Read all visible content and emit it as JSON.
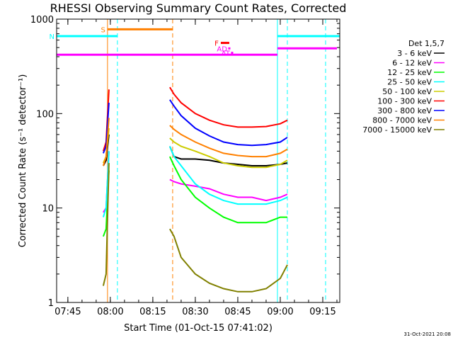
{
  "chart_data": {
    "type": "line",
    "title": "RHESSI Observing Summary Count Rates, Corrected",
    "xlabel": "Start Time (01-Oct-15 07:41:02)",
    "ylabel": "Corrected Count Rate (s⁻¹ detector⁻¹)",
    "yscale": "log",
    "ylim": [
      1,
      1000
    ],
    "xlim": [
      "07:41:02",
      "09:21:00"
    ],
    "x_ticks": [
      "07:45",
      "08:00",
      "08:15",
      "08:30",
      "08:45",
      "09:00",
      "09:15"
    ],
    "y_ticks": [
      "1",
      "10",
      "100",
      "1000"
    ],
    "legend_title": "Det 1,5,7",
    "legend_position": "right",
    "timestamp": "31-Oct-2021 20:08",
    "series": [
      {
        "name": "3 - 6 keV",
        "color": "#000000",
        "segments": [
          {
            "x": [
              "07:57:30",
              "07:58:30",
              "07:59:30"
            ],
            "y": [
              28,
              32,
              60
            ]
          },
          {
            "x": [
              "08:21:00",
              "08:22:30",
              "08:25:00",
              "08:30:00",
              "08:35:00",
              "08:40:00",
              "08:45:00",
              "08:50:00",
              "08:55:00",
              "09:00:00",
              "09:02:30"
            ],
            "y": [
              45,
              35,
              33,
              33,
              32,
              30,
              29,
              28,
              28,
              29,
              30
            ]
          }
        ]
      },
      {
        "name": "6 - 12 keV",
        "color": "#ff00ff",
        "segments": [
          {
            "x": [
              "07:57:30",
              "07:58:30",
              "07:59:30"
            ],
            "y": [
              9,
              10,
              40
            ]
          },
          {
            "x": [
              "08:21:00",
              "08:22:30",
              "08:25:00",
              "08:30:00",
              "08:35:00",
              "08:40:00",
              "08:45:00",
              "08:50:00",
              "08:55:00",
              "09:00:00",
              "09:02:30"
            ],
            "y": [
              20,
              19,
              18,
              17,
              16,
              14,
              13,
              13,
              12,
              13,
              14
            ]
          }
        ]
      },
      {
        "name": "12 - 25 keV",
        "color": "#00ff00",
        "segments": [
          {
            "x": [
              "07:57:30",
              "07:58:30",
              "07:59:30"
            ],
            "y": [
              5,
              6,
              25
            ]
          },
          {
            "x": [
              "08:21:00",
              "08:22:30",
              "08:25:00",
              "08:30:00",
              "08:35:00",
              "08:40:00",
              "08:45:00",
              "08:50:00",
              "08:55:00",
              "09:00:00",
              "09:02:30"
            ],
            "y": [
              35,
              28,
              20,
              13,
              10,
              8,
              7,
              7,
              7,
              8,
              8
            ]
          }
        ]
      },
      {
        "name": "25 - 50 keV",
        "color": "#00ffff",
        "segments": [
          {
            "x": [
              "07:57:30",
              "07:58:30",
              "07:59:30"
            ],
            "y": [
              8,
              10,
              40
            ]
          },
          {
            "x": [
              "08:21:00",
              "08:22:30",
              "08:25:00",
              "08:30:00",
              "08:35:00",
              "08:40:00",
              "08:45:00",
              "08:50:00",
              "08:55:00",
              "09:00:00",
              "09:02:30"
            ],
            "y": [
              45,
              35,
              28,
              18,
              14,
              12,
              11,
              11,
              11,
              12,
              13
            ]
          }
        ]
      },
      {
        "name": "50 - 100 keV",
        "color": "#cccc00",
        "segments": [
          {
            "x": [
              "07:57:30",
              "07:58:30",
              "07:59:30"
            ],
            "y": [
              30,
              35,
              70
            ]
          },
          {
            "x": [
              "08:21:00",
              "08:22:30",
              "08:25:00",
              "08:30:00",
              "08:35:00",
              "08:40:00",
              "08:45:00",
              "08:50:00",
              "08:55:00",
              "09:00:00",
              "09:02:30"
            ],
            "y": [
              55,
              50,
              45,
              40,
              35,
              30,
              28,
              27,
              27,
              29,
              32
            ]
          }
        ]
      },
      {
        "name": "100 - 300 keV",
        "color": "#ff0000",
        "segments": [
          {
            "x": [
              "07:57:30",
              "07:58:30",
              "07:59:30"
            ],
            "y": [
              40,
              50,
              180
            ]
          },
          {
            "x": [
              "08:21:00",
              "08:22:30",
              "08:25:00",
              "08:30:00",
              "08:35:00",
              "08:40:00",
              "08:45:00",
              "08:50:00",
              "08:55:00",
              "09:00:00",
              "09:02:30"
            ],
            "y": [
              190,
              160,
              130,
              100,
              85,
              76,
              72,
              72,
              73,
              78,
              85
            ]
          }
        ]
      },
      {
        "name": "300 - 800 keV",
        "color": "#0000ff",
        "segments": [
          {
            "x": [
              "07:57:30",
              "07:58:30",
              "07:59:30"
            ],
            "y": [
              38,
              45,
              130
            ]
          },
          {
            "x": [
              "08:21:00",
              "08:22:30",
              "08:25:00",
              "08:30:00",
              "08:35:00",
              "08:40:00",
              "08:45:00",
              "08:50:00",
              "08:55:00",
              "09:00:00",
              "09:02:30"
            ],
            "y": [
              140,
              120,
              95,
              70,
              58,
              50,
              47,
              46,
              47,
              50,
              56
            ]
          }
        ]
      },
      {
        "name": "800 - 7000 keV",
        "color": "#ff8000",
        "segments": [
          {
            "x": [
              "07:57:30",
              "07:58:30",
              "07:59:30"
            ],
            "y": [
              28,
              35,
              90
            ]
          },
          {
            "x": [
              "08:21:00",
              "08:22:30",
              "08:25:00",
              "08:30:00",
              "08:35:00",
              "08:40:00",
              "08:45:00",
              "08:50:00",
              "08:55:00",
              "09:00:00",
              "09:02:30"
            ],
            "y": [
              75,
              68,
              60,
              50,
              43,
              38,
              36,
              35,
              35,
              38,
              42
            ]
          }
        ]
      },
      {
        "name": "7000 - 15000 keV",
        "color": "#808000",
        "segments": [
          {
            "x": [
              "07:57:30",
              "07:58:30",
              "07:59:30"
            ],
            "y": [
              1.5,
              2,
              30
            ]
          },
          {
            "x": [
              "08:21:00",
              "08:22:30",
              "08:25:00",
              "08:30:00",
              "08:35:00",
              "08:40:00",
              "08:45:00",
              "08:50:00",
              "08:55:00",
              "09:00:00",
              "09:02:30"
            ],
            "y": [
              6,
              5,
              3,
              2,
              1.6,
              1.4,
              1.3,
              1.3,
              1.4,
              1.8,
              2.5
            ]
          }
        ]
      }
    ],
    "state_bars": [
      {
        "label": "S",
        "color": "#ff8000",
        "x_start": "07:59:00",
        "x_end": "08:22:00",
        "y": 780
      },
      {
        "label": "N",
        "color": "#00ffff",
        "x_start": "07:41:02",
        "x_end": "08:02:30",
        "y": 660
      },
      {
        "label": "",
        "color": "#00ffff",
        "x_start": "08:59:00",
        "x_end": "09:21:00",
        "y": 660
      },
      {
        "label": "",
        "color": "#ff00ff",
        "x_start": "07:41:02",
        "x_end": "08:59:00",
        "y": 420
      },
      {
        "label": "",
        "color": "#ff00ff",
        "x_start": "08:59:00",
        "x_end": "09:20:00",
        "y": 490
      },
      {
        "label": "F",
        "color": "#ff0000",
        "x_start": "08:39:00",
        "x_end": "08:42:00",
        "y": 560
      },
      {
        "label": "AD",
        "color": "#ff00ff",
        "x_start": "08:42:00",
        "x_end": "08:42:00",
        "y": 490
      },
      {
        "label": "AT",
        "color": "#ff00ff",
        "x_start": "08:43:00",
        "x_end": "08:43:00",
        "y": 440
      }
    ],
    "solid_markers": [
      {
        "x": "07:41:02",
        "color": "#00ffff"
      },
      {
        "x": "07:59:00",
        "color": "#ff8000"
      },
      {
        "x": "08:59:00",
        "color": "#00ffff"
      }
    ],
    "dashed_markers": [
      {
        "x": "08:02:30",
        "color": "#00ffff"
      },
      {
        "x": "08:22:00",
        "color": "#ff8000"
      },
      {
        "x": "09:02:30",
        "color": "#00ffff"
      },
      {
        "x": "09:16:00",
        "color": "#00ffff"
      }
    ]
  }
}
